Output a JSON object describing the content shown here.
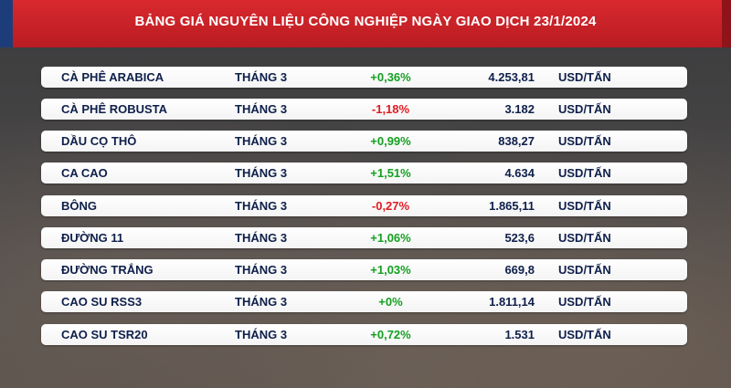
{
  "header": {
    "title": "BẢNG GIÁ NGUYÊN LIỆU CÔNG NGHIỆP NGÀY GIAO DỊCH 23/1/2024"
  },
  "colors": {
    "header_red": "#c8232a",
    "header_blue": "#1d3d7a",
    "up": "#14a020",
    "down": "#e01b22",
    "text": "#0e1f4a"
  },
  "rows": [
    {
      "name": "CÀ PHÊ ARABICA",
      "month": "THÁNG 3",
      "change": "+0,36%",
      "direction": "up",
      "price": "4.253,81",
      "unit": "USD/TẤN"
    },
    {
      "name": "CÀ PHÊ ROBUSTA",
      "month": "THÁNG 3",
      "change": "-1,18%",
      "direction": "down",
      "price": "3.182",
      "unit": "USD/TẤN"
    },
    {
      "name": "DẦU CỌ THÔ",
      "month": "THÁNG 3",
      "change": "+0,99%",
      "direction": "up",
      "price": "838,27",
      "unit": "USD/TẤN"
    },
    {
      "name": "CA CAO",
      "month": "THÁNG 3",
      "change": "+1,51%",
      "direction": "up",
      "price": "4.634",
      "unit": "USD/TẤN"
    },
    {
      "name": "BÔNG",
      "month": "THÁNG 3",
      "change": "-0,27%",
      "direction": "down",
      "price": "1.865,11",
      "unit": "USD/TẤN"
    },
    {
      "name": "ĐƯỜNG 11",
      "month": "THÁNG 3",
      "change": "+1,06%",
      "direction": "up",
      "price": "523,6",
      "unit": "USD/TẤN"
    },
    {
      "name": "ĐƯỜNG TRẮNG",
      "month": "THÁNG 3",
      "change": "+1,03%",
      "direction": "up",
      "price": "669,8",
      "unit": "USD/TẤN"
    },
    {
      "name": "CAO SU RSS3",
      "month": "THÁNG 3",
      "change": "+0%",
      "direction": "flat",
      "price": "1.811,14",
      "unit": "USD/TẤN"
    },
    {
      "name": "CAO SU TSR20",
      "month": "THÁNG 3",
      "change": "+0,72%",
      "direction": "up",
      "price": "1.531",
      "unit": "USD/TẤN"
    }
  ]
}
